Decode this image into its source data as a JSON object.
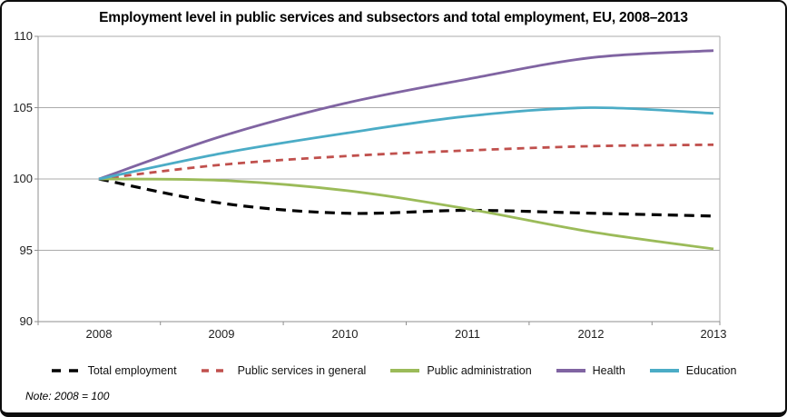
{
  "chart_data": {
    "type": "line",
    "title": "Employment level in public services and subsectors and total employment, EU, 2008–2013",
    "note": "Note: 2008 = 100",
    "x_labels": [
      "2008",
      "2009",
      "2010",
      "2011",
      "2012",
      "2013"
    ],
    "ytick_labels": [
      "110",
      "105",
      "100",
      "95",
      "90"
    ],
    "ylim": [
      90,
      110
    ],
    "grid": "horizontal",
    "legend_position": "bottom",
    "axis_color": "#8f8f8f",
    "gridline_color": "#ababab",
    "series": [
      {
        "name": "Total employment",
        "color": "#000000",
        "dash": true,
        "dash_pattern": "11 7",
        "width": 3.2,
        "values": [
          100,
          98.3,
          97.6,
          97.8,
          97.6,
          97.4
        ]
      },
      {
        "name": "Public services in general",
        "color": "#C0504D",
        "dash": true,
        "dash_pattern": "8 6",
        "width": 2.8,
        "values": [
          100,
          101.0,
          101.6,
          102.0,
          102.3,
          102.4
        ]
      },
      {
        "name": "Public administration",
        "color": "#9BBB59",
        "dash": false,
        "dash_pattern": "",
        "width": 2.8,
        "values": [
          100,
          99.9,
          99.2,
          97.9,
          96.3,
          95.1
        ]
      },
      {
        "name": "Health",
        "color": "#8064A2",
        "dash": false,
        "dash_pattern": "",
        "width": 2.8,
        "values": [
          100,
          103.0,
          105.3,
          107.0,
          108.5,
          109.0
        ]
      },
      {
        "name": "Education",
        "color": "#4BACC6",
        "dash": false,
        "dash_pattern": "",
        "width": 2.8,
        "values": [
          100,
          101.8,
          103.2,
          104.4,
          105.0,
          104.6
        ]
      }
    ]
  }
}
